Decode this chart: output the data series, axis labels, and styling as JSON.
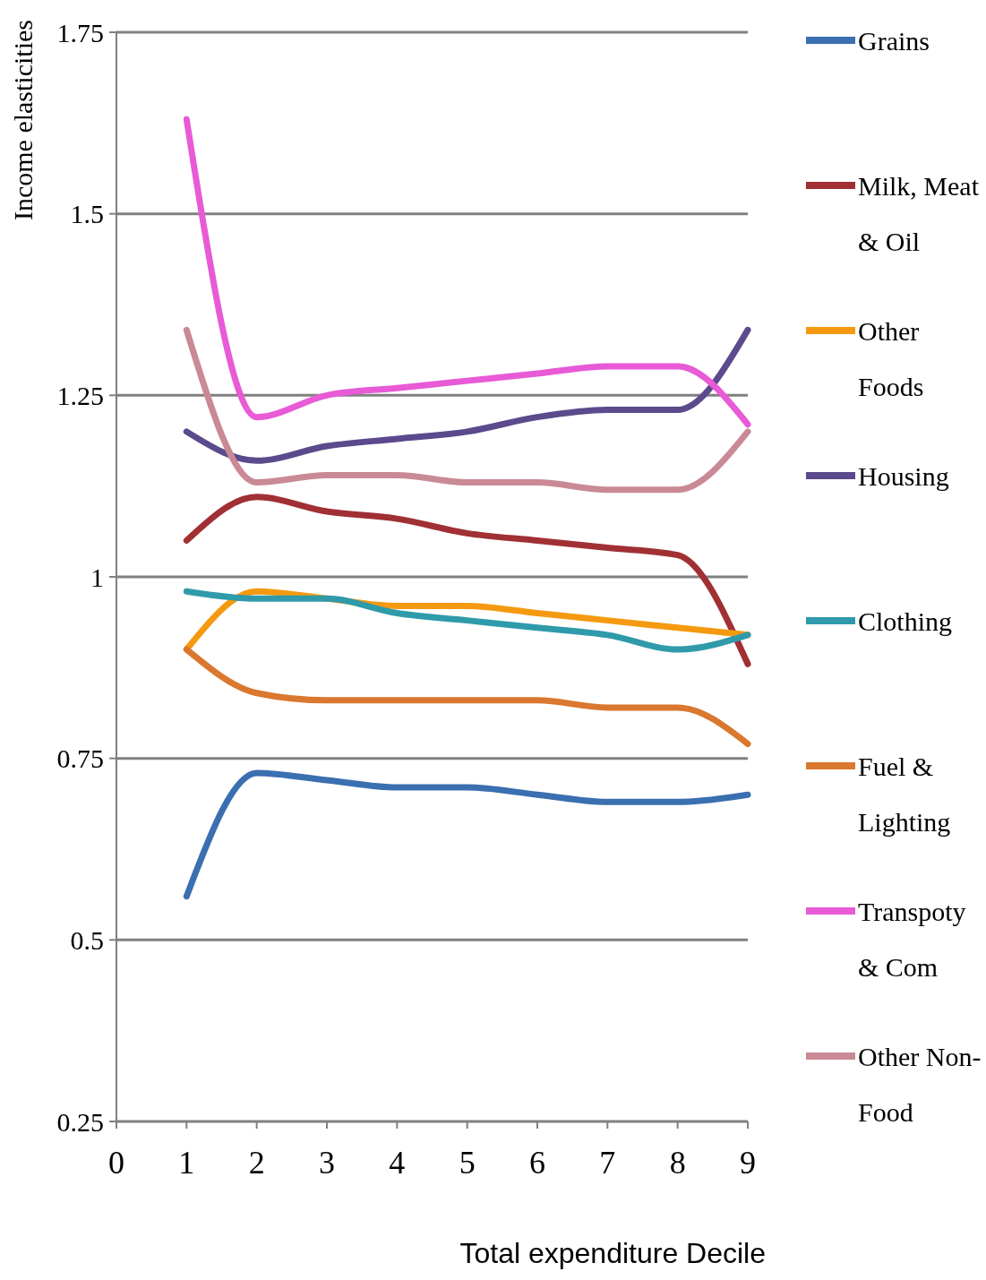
{
  "chart_data": {
    "type": "line",
    "xlabel": "Total expenditure Decile",
    "ylabel": "Income elasticities",
    "x": [
      1,
      2,
      3,
      4,
      5,
      6,
      7,
      8,
      9
    ],
    "xlim": [
      0,
      9
    ],
    "xticks": [
      0,
      1,
      2,
      3,
      4,
      5,
      6,
      7,
      8,
      9
    ],
    "ylim": [
      0.25,
      1.75
    ],
    "yticks": [
      0.25,
      0.5,
      0.75,
      1,
      1.25,
      1.5,
      1.75
    ],
    "grid": "y",
    "legend": "right",
    "marker": "none",
    "line_style": "solid",
    "series": [
      {
        "name": "Grains",
        "color": "#3a6fb0",
        "values": [
          0.56,
          0.73,
          0.72,
          0.71,
          0.71,
          0.7,
          0.69,
          0.69,
          0.7
        ]
      },
      {
        "name": "Milk, Meat & Oil",
        "color": "#a03034",
        "values": [
          1.05,
          1.11,
          1.09,
          1.08,
          1.06,
          1.05,
          1.04,
          1.03,
          0.88
        ]
      },
      {
        "name": "Other Foods",
        "color": "#f59a10",
        "values": [
          0.9,
          0.98,
          0.97,
          0.96,
          0.96,
          0.95,
          0.94,
          0.93,
          0.92
        ]
      },
      {
        "name": "Housing",
        "color": "#5b4a8c",
        "values": [
          1.2,
          1.16,
          1.18,
          1.19,
          1.2,
          1.22,
          1.23,
          1.23,
          1.34
        ]
      },
      {
        "name": "Clothing",
        "color": "#2f9aaa",
        "values": [
          0.98,
          0.97,
          0.97,
          0.95,
          0.94,
          0.93,
          0.92,
          0.9,
          0.92
        ]
      },
      {
        "name": "Fuel & Lighting",
        "color": "#d9782e",
        "values": [
          0.9,
          0.84,
          0.83,
          0.83,
          0.83,
          0.83,
          0.82,
          0.82,
          0.77
        ]
      },
      {
        "name": "Transpoty & Com",
        "color": "#e85ad6",
        "values": [
          1.63,
          1.22,
          1.25,
          1.26,
          1.27,
          1.28,
          1.29,
          1.29,
          1.21
        ]
      },
      {
        "name": "Other Non-Food",
        "color": "#c98a95",
        "values": [
          1.34,
          1.13,
          1.14,
          1.14,
          1.13,
          1.13,
          1.12,
          1.12,
          1.2
        ]
      }
    ]
  }
}
